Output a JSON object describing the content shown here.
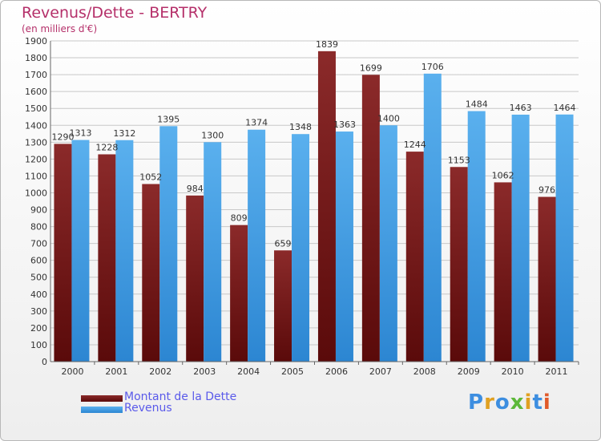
{
  "title": "Revenus/Dette - BERTRY",
  "subtitle": "(en milliers d'€)",
  "legend": [
    {
      "label": "Montant de la Dette",
      "color": "#7a1c1c"
    },
    {
      "label": "Revenus",
      "color": "#3d9ee6"
    }
  ],
  "logo": {
    "letters": [
      "P",
      "r",
      "o",
      "x",
      "i",
      "t",
      "i"
    ],
    "colors": [
      "#3d8ee0",
      "#e0a020",
      "#3d8ee0",
      "#5db83a",
      "#e0a020",
      "#3d8ee0",
      "#e05a2a"
    ]
  },
  "chart_data": {
    "type": "bar",
    "categories": [
      "2000",
      "2001",
      "2002",
      "2003",
      "2004",
      "2005",
      "2006",
      "2007",
      "2008",
      "2009",
      "2010",
      "2011"
    ],
    "series": [
      {
        "name": "Montant de la Dette",
        "color": "#7a1c1c",
        "values": [
          1290,
          1228,
          1052,
          984,
          809,
          659,
          1839,
          1699,
          1244,
          1153,
          1062,
          976
        ]
      },
      {
        "name": "Revenus",
        "color": "#3d9ee6",
        "values": [
          1313,
          1312,
          1395,
          1300,
          1374,
          1348,
          1363,
          1400,
          1706,
          1484,
          1463,
          1464
        ]
      }
    ],
    "yticks": [
      0,
      100,
      200,
      300,
      400,
      500,
      600,
      700,
      800,
      900,
      1000,
      1100,
      1200,
      1300,
      1400,
      1500,
      1600,
      1700,
      1800,
      1900
    ],
    "ylim": [
      0,
      1900
    ],
    "grid": true
  }
}
